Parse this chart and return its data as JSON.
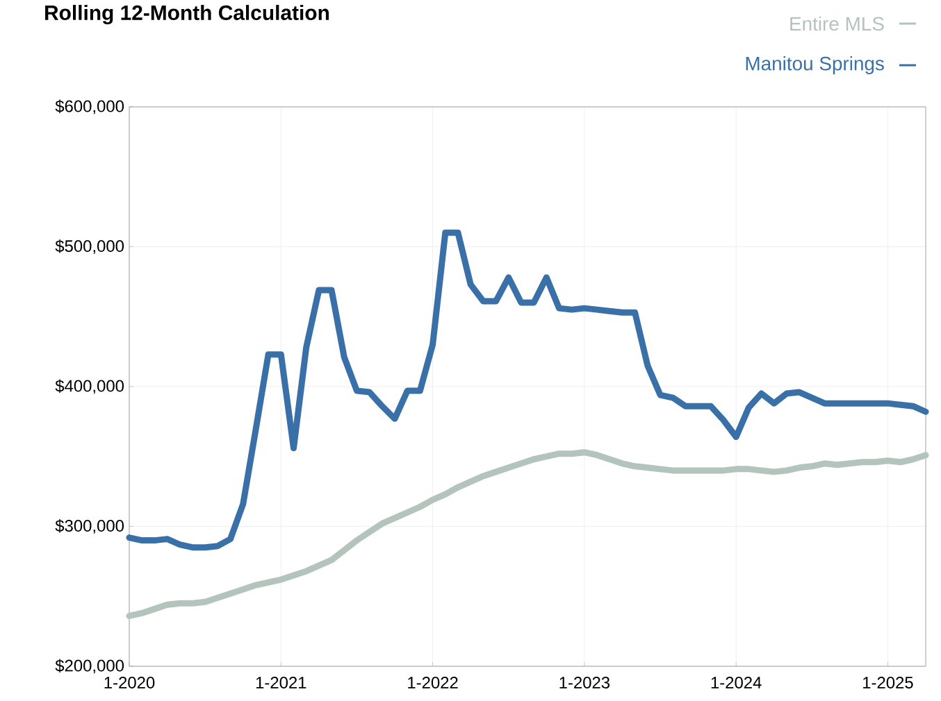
{
  "chart_data": {
    "type": "line",
    "title": "Rolling 12-Month Calculation",
    "x": [
      "2020-01",
      "2020-02",
      "2020-03",
      "2020-04",
      "2020-05",
      "2020-06",
      "2020-07",
      "2020-08",
      "2020-09",
      "2020-10",
      "2020-11",
      "2020-12",
      "2021-01",
      "2021-02",
      "2021-03",
      "2021-04",
      "2021-05",
      "2021-06",
      "2021-07",
      "2021-08",
      "2021-09",
      "2021-10",
      "2021-11",
      "2021-12",
      "2022-01",
      "2022-02",
      "2022-03",
      "2022-04",
      "2022-05",
      "2022-06",
      "2022-07",
      "2022-08",
      "2022-09",
      "2022-10",
      "2022-11",
      "2022-12",
      "2023-01",
      "2023-02",
      "2023-03",
      "2023-04",
      "2023-05",
      "2023-06",
      "2023-07",
      "2023-08",
      "2023-09",
      "2023-10",
      "2023-11",
      "2023-12",
      "2024-01",
      "2024-02",
      "2024-03",
      "2024-04",
      "2024-05",
      "2024-06",
      "2024-07",
      "2024-08",
      "2024-09",
      "2024-10",
      "2024-11",
      "2024-12",
      "2025-01",
      "2025-02",
      "2025-03",
      "2025-04"
    ],
    "series": [
      {
        "name": "Entire MLS",
        "color": "#b2c4bb",
        "values": [
          236000,
          238000,
          241000,
          244000,
          245000,
          245000,
          246000,
          249000,
          252000,
          255000,
          258000,
          260000,
          262000,
          265000,
          268000,
          272000,
          276000,
          283000,
          290000,
          296000,
          302000,
          306000,
          310000,
          314000,
          319000,
          323000,
          328000,
          332000,
          336000,
          339000,
          342000,
          345000,
          348000,
          350000,
          352000,
          352000,
          353000,
          351000,
          348000,
          345000,
          343000,
          342000,
          341000,
          340000,
          340000,
          340000,
          340000,
          340000,
          341000,
          341000,
          340000,
          339000,
          340000,
          342000,
          343000,
          345000,
          344000,
          345000,
          346000,
          346000,
          347000,
          346000,
          348000,
          351000
        ]
      },
      {
        "name": "Manitou Springs",
        "color": "#3a70a8",
        "values": [
          292000,
          290000,
          290000,
          291000,
          287000,
          285000,
          285000,
          286000,
          291000,
          316000,
          369000,
          423000,
          423000,
          356000,
          428000,
          469000,
          469000,
          421000,
          397000,
          396000,
          386000,
          377000,
          397000,
          397000,
          430000,
          510000,
          510000,
          473000,
          461000,
          461000,
          478000,
          460000,
          460000,
          478000,
          456000,
          455000,
          456000,
          455000,
          454000,
          453000,
          453000,
          415000,
          394000,
          392000,
          386000,
          386000,
          386000,
          376000,
          364000,
          385000,
          395000,
          388000,
          395000,
          396000,
          392000,
          388000,
          388000,
          388000,
          388000,
          388000,
          388000,
          387000,
          386000,
          382000
        ]
      }
    ],
    "xlim": [
      "2020-01",
      "2025-04"
    ],
    "xticks": [
      {
        "value": "2020-01",
        "label": "1-2020"
      },
      {
        "value": "2021-01",
        "label": "1-2021"
      },
      {
        "value": "2022-01",
        "label": "1-2022"
      },
      {
        "value": "2023-01",
        "label": "1-2023"
      },
      {
        "value": "2024-01",
        "label": "1-2024"
      },
      {
        "value": "2025-01",
        "label": "1-2025"
      }
    ],
    "ylim": [
      200000,
      600000
    ],
    "yticks": [
      {
        "value": 200000,
        "label": "$200,000"
      },
      {
        "value": 300000,
        "label": "$300,000"
      },
      {
        "value": 400000,
        "label": "$400,000"
      },
      {
        "value": 500000,
        "label": "$500,000"
      },
      {
        "value": 600000,
        "label": "$600,000"
      }
    ],
    "grid": true,
    "legend": "top right",
    "marker": "none",
    "line_style": "solid"
  }
}
